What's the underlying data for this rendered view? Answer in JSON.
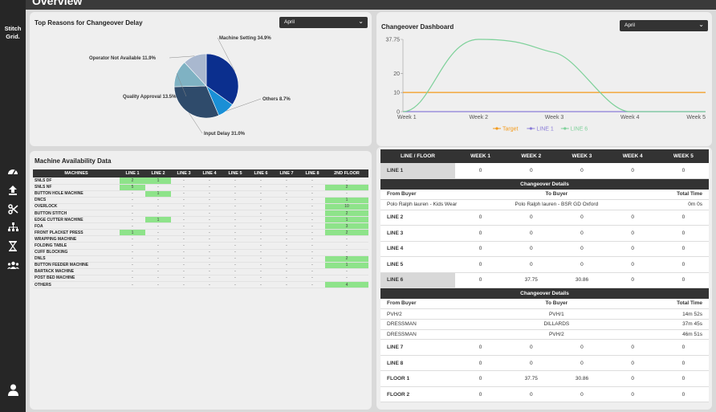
{
  "brand": {
    "name": "Stitch Grid."
  },
  "page": {
    "title": "Overview"
  },
  "delay": {
    "title": "Top Reasons for Changeover Delay",
    "month": "April",
    "slices": [
      {
        "label": "Machine Setting 34.9%",
        "value": 34.9,
        "color": "#0b2f8e"
      },
      {
        "label": "Others 8.7%",
        "value": 8.7,
        "color": "#1a8fd6"
      },
      {
        "label": "Input Delay 31.0%",
        "value": 31.0,
        "color": "#2f4b6b"
      },
      {
        "label": "Quality Approval 13.5%",
        "value": 13.5,
        "color": "#7fb2c3"
      },
      {
        "label": "Operator Not Available 11.9%",
        "value": 11.9,
        "color": "#a9b8cf"
      }
    ]
  },
  "availability": {
    "title": "Machine Availability Data",
    "headers": [
      "MACHINES",
      "LINE 1",
      "LINE 2",
      "LINE 3",
      "LINE 4",
      "LINE 5",
      "LINE 6",
      "LINE 7",
      "LINE 8",
      "2ND FLOOR"
    ],
    "rows": [
      [
        "SNLS DF",
        "2",
        "1",
        "-",
        "-",
        "-",
        "-",
        "-",
        "-",
        "-"
      ],
      [
        "SNLS NF",
        "5",
        "-",
        "-",
        "-",
        "-",
        "-",
        "-",
        "-",
        "2"
      ],
      [
        "BUTTON HOLE MACHINE",
        "-",
        "1",
        "-",
        "-",
        "-",
        "-",
        "-",
        "-",
        "-"
      ],
      [
        "DNCS",
        "-",
        "-",
        "-",
        "-",
        "-",
        "-",
        "-",
        "-",
        "1"
      ],
      [
        "OVERLOCK",
        "-",
        "-",
        "-",
        "-",
        "-",
        "-",
        "-",
        "-",
        "10"
      ],
      [
        "BUTTON STITCH",
        "-",
        "-",
        "-",
        "-",
        "-",
        "-",
        "-",
        "-",
        "2"
      ],
      [
        "EDGE CUTTER MACHINE",
        "-",
        "1",
        "-",
        "-",
        "-",
        "-",
        "-",
        "-",
        "1"
      ],
      [
        "FOA",
        "-",
        "-",
        "-",
        "-",
        "-",
        "-",
        "-",
        "-",
        "3"
      ],
      [
        "FRONT PLACKET PRESS",
        "1",
        "-",
        "-",
        "-",
        "-",
        "-",
        "-",
        "-",
        "2"
      ],
      [
        "WRAPPING MACHINE",
        "-",
        "-",
        "-",
        "-",
        "-",
        "-",
        "-",
        "-",
        "-"
      ],
      [
        "FOLDING TABLE",
        "-",
        "-",
        "-",
        "-",
        "-",
        "-",
        "-",
        "-",
        "-"
      ],
      [
        "CUFF BLOCKING",
        "-",
        "-",
        "-",
        "-",
        "-",
        "-",
        "-",
        "-",
        "-"
      ],
      [
        "DNLS",
        "-",
        "-",
        "-",
        "-",
        "-",
        "-",
        "-",
        "-",
        "2"
      ],
      [
        "BUTTON FEEDER MACHINE",
        "-",
        "-",
        "-",
        "-",
        "-",
        "-",
        "-",
        "-",
        "1"
      ],
      [
        "BARTACK MACHINE",
        "-",
        "-",
        "-",
        "-",
        "-",
        "-",
        "-",
        "-",
        "-"
      ],
      [
        "POST BED MACHINE",
        "-",
        "-",
        "-",
        "-",
        "-",
        "-",
        "-",
        "-",
        "-"
      ],
      [
        "OTHERS",
        "-",
        "-",
        "-",
        "-",
        "-",
        "-",
        "-",
        "-",
        "4"
      ]
    ]
  },
  "dashboard": {
    "title": "Changeover Dashboard",
    "month": "April",
    "chart_data": {
      "type": "line",
      "x": [
        "Week 1",
        "Week 2",
        "Week 3",
        "Week 4",
        "Week 5"
      ],
      "series": [
        {
          "name": "Target",
          "values": [
            10,
            10,
            10,
            10,
            10
          ],
          "color": "#f39a1a"
        },
        {
          "name": "LINE 1",
          "values": [
            0,
            0,
            0,
            0,
            0
          ],
          "color": "#8a7cd8"
        },
        {
          "name": "LINE 6",
          "values": [
            0,
            37.75,
            30.86,
            0,
            0
          ],
          "color": "#7ed19a"
        }
      ],
      "yticks": [
        0,
        10,
        20,
        37.75
      ],
      "ylim": [
        0,
        37.75
      ],
      "grid": false,
      "legend": "bottom"
    }
  },
  "weekly": {
    "headers": [
      "LINE / FLOOR",
      "WEEK 1",
      "WEEK 2",
      "WEEK 3",
      "WEEK 4",
      "WEEK 5"
    ],
    "cd_title": "Changeover Details",
    "cd_cols": [
      "From Buyer",
      "To Buyer",
      "Total Time"
    ],
    "rows": [
      {
        "name": "LINE 1",
        "values": [
          "0",
          "0",
          "0",
          "0",
          "0"
        ],
        "shade": true,
        "details": [
          [
            "Polo Ralph lauren - Kids Wear",
            "Polo Ralph lauren - BSR GD Oxford",
            "0m 0s"
          ]
        ]
      },
      {
        "name": "LINE 2",
        "values": [
          "0",
          "0",
          "0",
          "0",
          "0"
        ]
      },
      {
        "name": "LINE 3",
        "values": [
          "0",
          "0",
          "0",
          "0",
          "0"
        ]
      },
      {
        "name": "LINE 4",
        "values": [
          "0",
          "0",
          "0",
          "0",
          "0"
        ]
      },
      {
        "name": "LINE 5",
        "values": [
          "0",
          "0",
          "0",
          "0",
          "0"
        ]
      },
      {
        "name": "LINE 6",
        "values": [
          "0",
          "37.75",
          "30.86",
          "0",
          "0"
        ],
        "shade": true,
        "details": [
          [
            "PVH/2",
            "PVH/1",
            "14m 52s"
          ],
          [
            "DRESSMAN",
            "DILLARDS",
            "37m 45s"
          ],
          [
            "DRESSMAN",
            "PVH/2",
            "46m 51s"
          ]
        ]
      },
      {
        "name": "LINE 7",
        "values": [
          "0",
          "0",
          "0",
          "0",
          "0"
        ]
      },
      {
        "name": "LINE 8",
        "values": [
          "0",
          "0",
          "0",
          "0",
          "0"
        ]
      },
      {
        "name": "FLOOR 1",
        "values": [
          "0",
          "37.75",
          "30.86",
          "0",
          "0"
        ]
      },
      {
        "name": "FLOOR 2",
        "values": [
          "0",
          "0",
          "0",
          "0",
          "0"
        ]
      }
    ]
  },
  "icons": [
    "dashboard-icon",
    "upload-icon",
    "scissors-icon",
    "hierarchy-icon",
    "hourglass-icon",
    "team-icon",
    "user-icon"
  ]
}
